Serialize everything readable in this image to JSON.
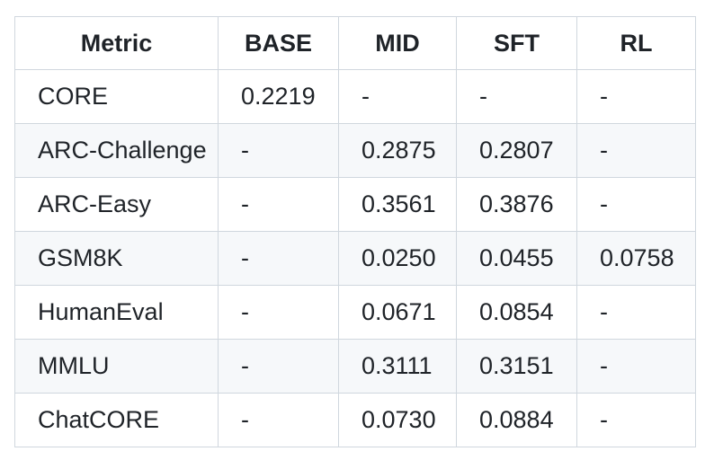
{
  "table": {
    "columns": [
      "Metric",
      "BASE",
      "MID",
      "SFT",
      "RL"
    ],
    "rows": [
      {
        "metric": "CORE",
        "values": [
          "0.2219",
          "-",
          "-",
          "-"
        ]
      },
      {
        "metric": "ARC-Challenge",
        "values": [
          "-",
          "0.2875",
          "0.2807",
          "-"
        ]
      },
      {
        "metric": "ARC-Easy",
        "values": [
          "-",
          "0.3561",
          "0.3876",
          "-"
        ]
      },
      {
        "metric": "GSM8K",
        "values": [
          "-",
          "0.0250",
          "0.0455",
          "0.0758"
        ]
      },
      {
        "metric": "HumanEval",
        "values": [
          "-",
          "0.0671",
          "0.0854",
          "-"
        ]
      },
      {
        "metric": "MMLU",
        "values": [
          "-",
          "0.3111",
          "0.3151",
          "-"
        ]
      },
      {
        "metric": "ChatCORE",
        "values": [
          "-",
          "0.0730",
          "0.0884",
          "-"
        ]
      }
    ],
    "colors": {
      "stripe": "#f6f8fa",
      "border": "#d0d7de",
      "text": "#1f2328",
      "background": "#ffffff"
    }
  }
}
